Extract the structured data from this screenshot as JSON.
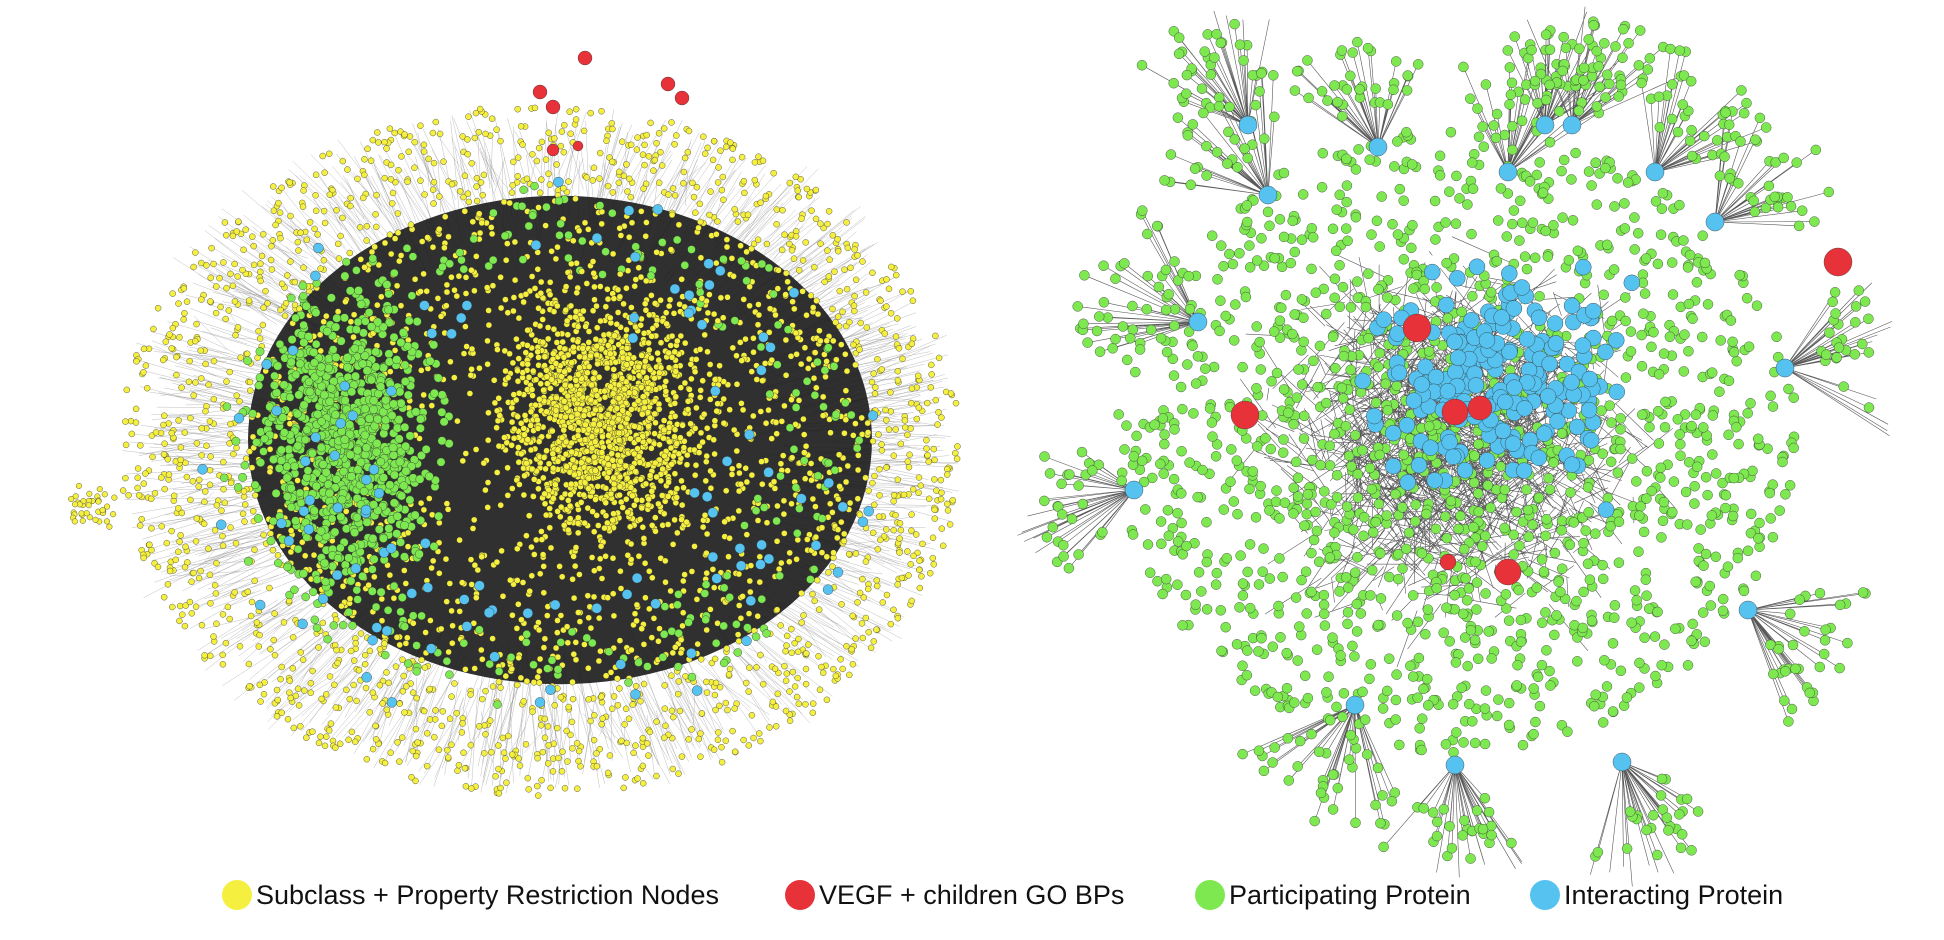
{
  "colors": {
    "subclass": "#f5f03f",
    "vegf": "#e8323a",
    "participating": "#7de84f",
    "interacting": "#55c2f0",
    "edge": "#222222",
    "node_stroke": "#333333"
  },
  "legend": {
    "items": [
      {
        "color_key": "subclass",
        "label": "Subclass + Property Restriction Nodes"
      },
      {
        "color_key": "vegf",
        "label": "VEGF + children GO BPs"
      },
      {
        "color_key": "participating",
        "label": "Participating Protein"
      },
      {
        "color_key": "interacting",
        "label": "Interacting Protein"
      }
    ]
  }
}
